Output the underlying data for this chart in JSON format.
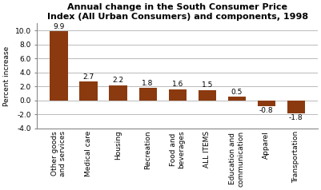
{
  "title": "Annual change in the South Consumer Price\nIndex (All Urban Consumers) and components, 1998",
  "categories": [
    "Other goods\nand services",
    "Medical care",
    "Housing",
    "Recreation",
    "Food and\nbeverages",
    "ALL ITEMS",
    "Education and\ncommunication",
    "Apparel",
    "Transportation"
  ],
  "values": [
    9.9,
    2.7,
    2.2,
    1.8,
    1.6,
    1.5,
    0.5,
    -0.8,
    -1.8
  ],
  "bar_color": "#8B3A0F",
  "ylabel": "Percent increase",
  "ylim": [
    -4,
    11
  ],
  "yticks": [
    -4.0,
    -2.0,
    0.0,
    2.0,
    4.0,
    6.0,
    8.0,
    10.0
  ],
  "ytick_labels": [
    "-4.0",
    "-2.0",
    "0.0",
    "2.0",
    "4.0",
    "6.0",
    "8.0",
    "10.0"
  ],
  "background_color": "#ffffff",
  "grid_color": "#b0b0b0",
  "title_fontsize": 8.0,
  "label_fontsize": 6.5,
  "tick_fontsize": 6.5,
  "value_labels": [
    "9.9",
    "2.7",
    "2.2",
    "1.8",
    "1.6",
    "1.5",
    "0.5",
    "-0.8",
    "-1.8"
  ],
  "xlabel_rotation": 90
}
